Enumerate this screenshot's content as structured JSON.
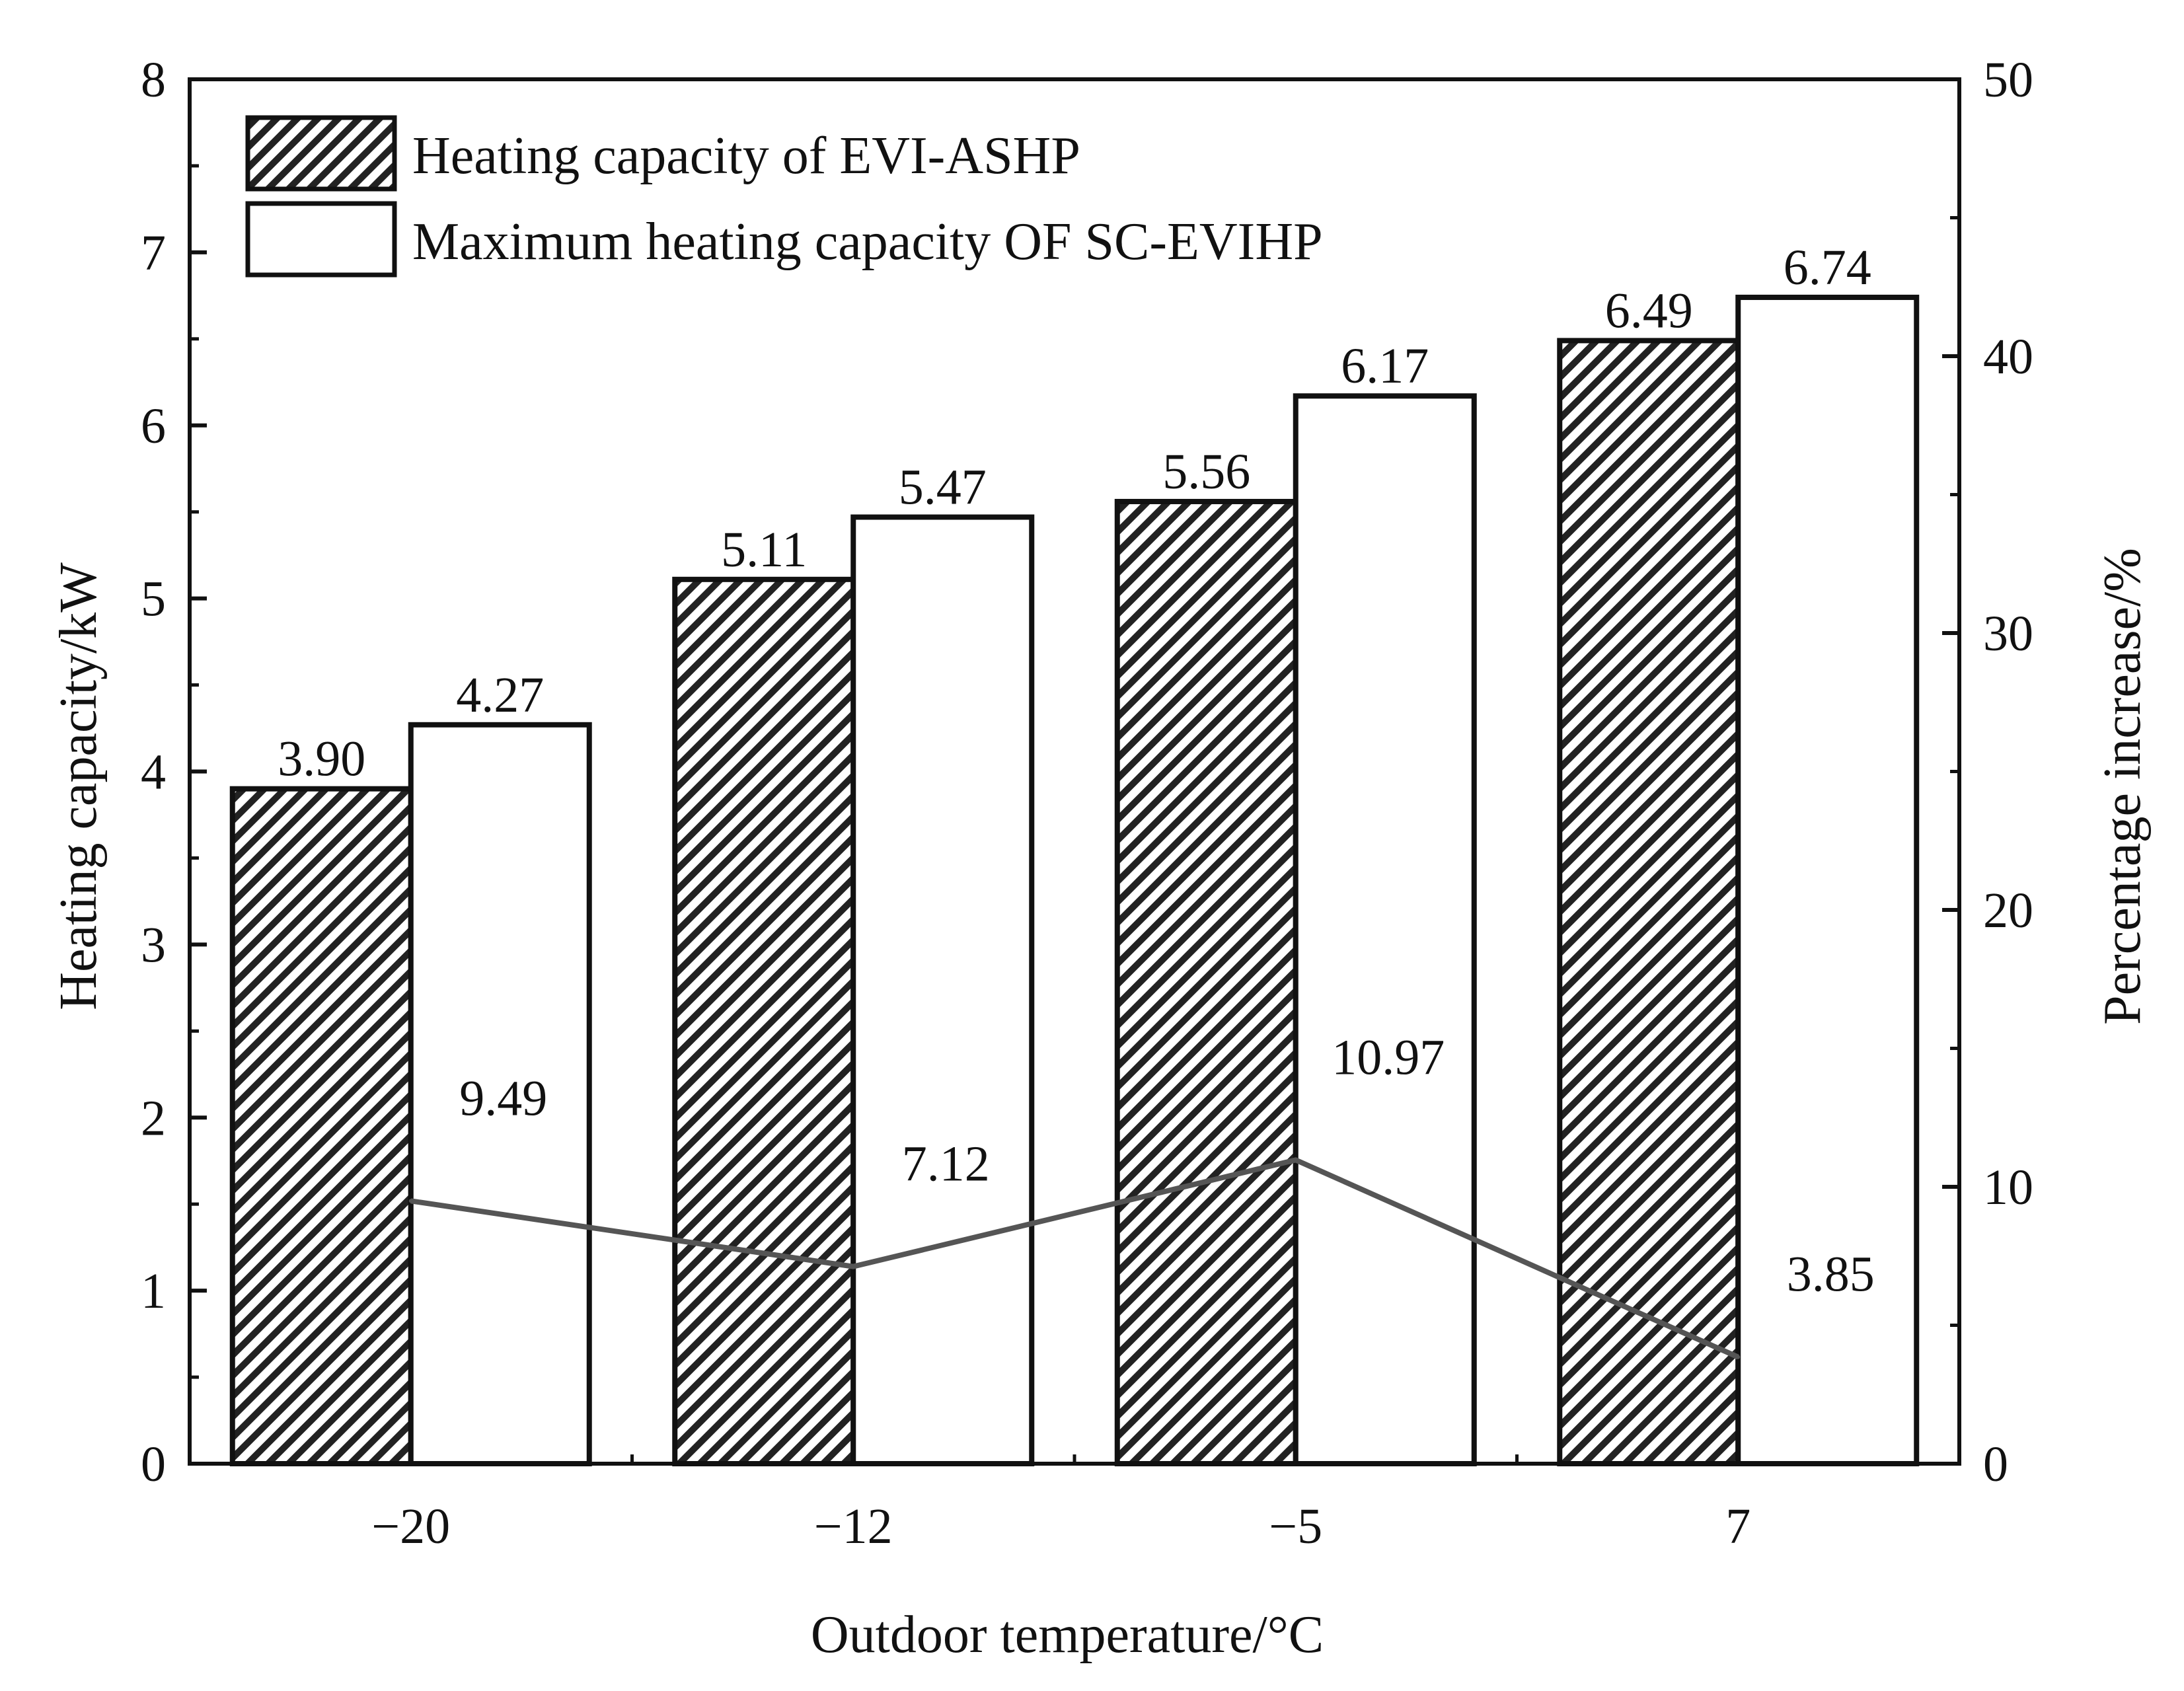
{
  "chart_data": {
    "type": "bar",
    "categories": [
      "−20",
      "−12",
      "−5",
      "7"
    ],
    "xlabel": "Outdoor temperature/°C",
    "ylabel": "Heating capacity/kW",
    "ylabel_right": "Percentage increase/%",
    "ylim": [
      0,
      8
    ],
    "ylim_right": [
      0,
      50
    ],
    "yticks": [
      "0",
      "1",
      "2",
      "3",
      "4",
      "5",
      "6",
      "7",
      "8"
    ],
    "yticks_right": [
      "0",
      "10",
      "20",
      "30",
      "40",
      "50"
    ],
    "series": [
      {
        "name": "Heating capacity of EVI-ASHP",
        "type": "bar",
        "pattern": "hatched",
        "values": [
          3.9,
          5.11,
          5.56,
          6.49
        ],
        "labels": [
          "3.90",
          "5.11",
          "5.56",
          "6.49"
        ]
      },
      {
        "name": "Maximum heating capacity OF SC-EVIHP",
        "type": "bar",
        "pattern": "open",
        "values": [
          4.27,
          5.47,
          6.17,
          6.74
        ],
        "labels": [
          "4.27",
          "5.47",
          "6.17",
          "6.74"
        ]
      },
      {
        "type": "line",
        "axis": "right",
        "values": [
          9.49,
          7.12,
          10.97,
          3.85
        ],
        "labels": [
          "9.49",
          "7.12",
          "10.97",
          "3.85"
        ],
        "color": "#555555"
      }
    ],
    "legend_position": "top-left",
    "grid": false
  }
}
